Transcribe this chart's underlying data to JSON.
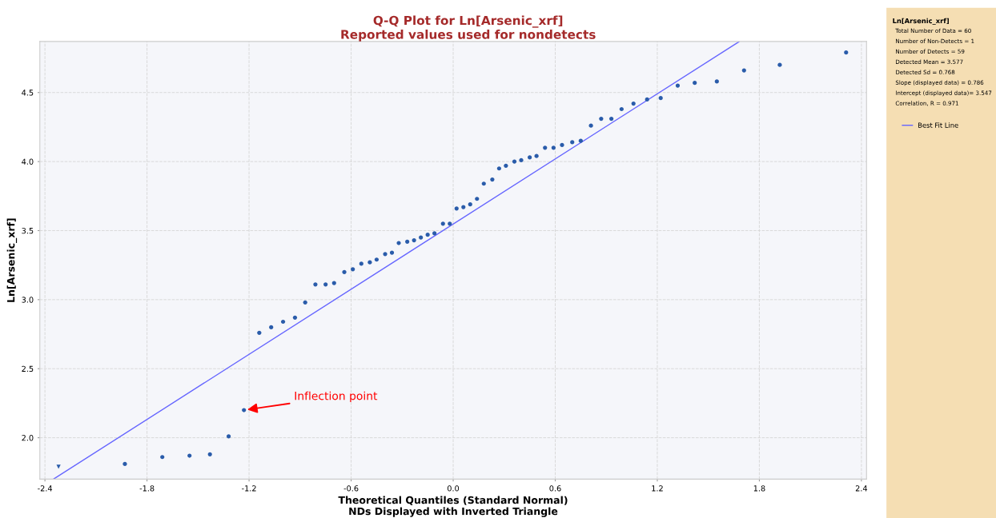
{
  "chart_data": {
    "type": "scatter",
    "title": "Q-Q Plot for Ln[Arsenic_xrf]\nReported values used for nondetects",
    "xlabel": "Theoretical Quantiles (Standard Normal)\nNDs Displayed with Inverted Triangle",
    "ylabel": "Ln[Arsenic_xrf]",
    "legend_title": "Ln[Arsenic_xrf]",
    "xlim": [
      -2.43,
      2.43
    ],
    "ylim": [
      1.7,
      4.87
    ],
    "xticks": [
      -2.4,
      -1.8,
      -1.2,
      -0.6,
      {
        "value": 0,
        "label": "0.0"
      },
      0.6,
      1.2,
      1.8,
      2.4
    ],
    "yticks": [
      {
        "value": 2,
        "label": "2.0"
      },
      2.5,
      {
        "value": 3,
        "label": "3.0"
      },
      3.5,
      {
        "value": 4,
        "label": "4.0"
      },
      4.5
    ],
    "grid": true,
    "legend": "right",
    "series": [
      {
        "marker": "circle",
        "color": "#2a5caa",
        "x": [
          -1.93,
          -1.71,
          -1.55,
          -1.43,
          -1.32,
          -1.23,
          -1.14,
          -1.07,
          -1.0,
          -0.93,
          -0.87,
          -0.81,
          -0.75,
          -0.7,
          -0.64,
          -0.59,
          -0.54,
          -0.49,
          -0.45,
          -0.4,
          -0.36,
          -0.32,
          -0.27,
          -0.23,
          -0.19,
          -0.15,
          -0.11,
          -0.06,
          -0.02,
          0.02,
          0.06,
          0.1,
          0.14,
          0.18,
          0.23,
          0.27,
          0.31,
          0.36,
          0.4,
          0.45,
          0.49,
          0.54,
          0.59,
          0.64,
          0.7,
          0.75,
          0.81,
          0.87,
          0.93,
          0.99,
          1.06,
          1.14,
          1.22,
          1.32,
          1.42,
          1.55,
          1.71,
          1.92,
          2.31
        ],
        "values": [
          1.81,
          1.86,
          1.87,
          1.88,
          2.01,
          2.2,
          2.76,
          2.8,
          2.84,
          2.87,
          2.98,
          3.11,
          3.11,
          3.12,
          3.2,
          3.22,
          3.26,
          3.27,
          3.29,
          3.33,
          3.34,
          3.41,
          3.42,
          3.43,
          3.45,
          3.47,
          3.48,
          3.55,
          3.55,
          3.66,
          3.67,
          3.69,
          3.73,
          3.84,
          3.87,
          3.95,
          3.97,
          4.0,
          4.01,
          4.03,
          4.04,
          4.1,
          4.1,
          4.12,
          4.14,
          4.15,
          4.26,
          4.31,
          4.31,
          4.38,
          4.42,
          4.45,
          4.46,
          4.55,
          4.57,
          4.58,
          4.66,
          4.7,
          4.79
        ]
      },
      {
        "marker": "triangle",
        "color": "#2a5caa",
        "x": [
          -2.32
        ],
        "values": [
          1.79
        ]
      },
      {
        "type": "line",
        "name": "Best Fit Line",
        "color": "#6666ff",
        "marker": "none",
        "line_style": "solid",
        "x": [
          -2.35,
          1.68
        ],
        "values": [
          1.7,
          4.868
        ]
      }
    ],
    "annotations": [
      {
        "text": "Inflection point",
        "x": -1.23,
        "y": 2.2
      },
      "Total Number of Data = 60",
      "Number of Non-Detects = 1",
      "Number of Detects = 59",
      "Detected Mean = 3.577",
      "Detected Sd = 0.768",
      "Slope (displayed data) = 0.786",
      "Intercept (displayed data)= 3.547",
      "Correlation, R = 0.971"
    ]
  }
}
